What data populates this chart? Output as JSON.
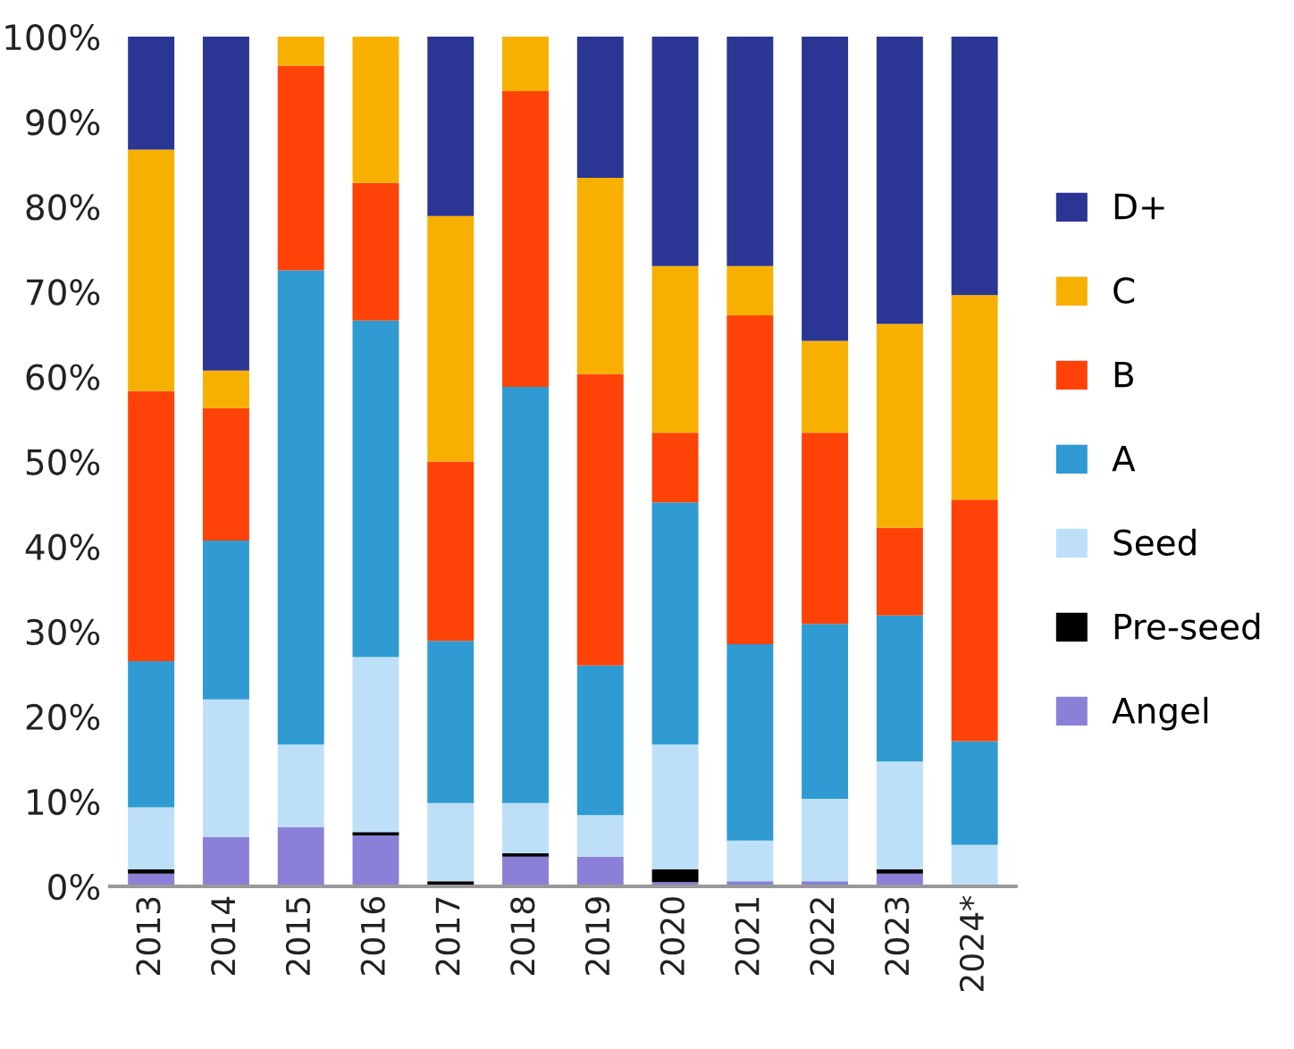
{
  "chart_data": {
    "type": "bar",
    "stacked": true,
    "categories": [
      "2013",
      "2014",
      "2015",
      "2016",
      "2017",
      "2018",
      "2019",
      "2020",
      "2021",
      "2022",
      "2023",
      "2024*"
    ],
    "series": [
      {
        "name": "Angel",
        "color": "#8b80d8",
        "values": [
          1.5,
          5.8,
          7.0,
          6.0,
          0.2,
          3.5,
          3.5,
          0.5,
          0.6,
          0.6,
          1.5,
          0
        ]
      },
      {
        "name": "Pre-seed",
        "color": "#000000",
        "values": [
          0.5,
          0,
          0,
          0.4,
          0.4,
          0.4,
          0,
          1.5,
          0,
          0,
          0.5,
          0
        ]
      },
      {
        "name": "Seed",
        "color": "#bde0f8",
        "values": [
          7.3,
          16.2,
          9.7,
          20.6,
          9.2,
          5.9,
          4.9,
          14.7,
          4.8,
          9.7,
          12.7,
          4.9
        ]
      },
      {
        "name": "A",
        "color": "#2f9bd2",
        "values": [
          17.2,
          18.7,
          55.8,
          39.6,
          19.1,
          49.0,
          17.6,
          28.5,
          23.1,
          20.6,
          17.2,
          12.2
        ]
      },
      {
        "name": "B",
        "color": "#ff4208",
        "values": [
          31.8,
          15.6,
          24.1,
          16.2,
          21.1,
          34.8,
          34.3,
          8.2,
          38.7,
          22.5,
          10.3,
          28.4
        ]
      },
      {
        "name": "C",
        "color": "#f8b000",
        "values": [
          28.4,
          4.4,
          3.4,
          17.2,
          28.9,
          6.4,
          23.1,
          19.6,
          5.8,
          10.8,
          24.0,
          24.1
        ]
      },
      {
        "name": "D+",
        "color": "#2b3593",
        "values": [
          13.3,
          39.3,
          0,
          0,
          21.1,
          0,
          16.6,
          27.0,
          27.0,
          35.8,
          33.8,
          30.4
        ]
      }
    ],
    "ylim": [
      0,
      100
    ],
    "yticks": [
      {
        "value": 0,
        "label": "0%"
      },
      {
        "value": 10,
        "label": "10%"
      },
      {
        "value": 20,
        "label": "20%"
      },
      {
        "value": 30,
        "label": "30%"
      },
      {
        "value": 40,
        "label": "40%"
      },
      {
        "value": 50,
        "label": "50%"
      },
      {
        "value": 60,
        "label": "60%"
      },
      {
        "value": 70,
        "label": "70%"
      },
      {
        "value": 80,
        "label": "80%"
      },
      {
        "value": 90,
        "label": "90%"
      },
      {
        "value": 100,
        "label": "100%"
      }
    ],
    "grid": false,
    "legend": "right"
  }
}
